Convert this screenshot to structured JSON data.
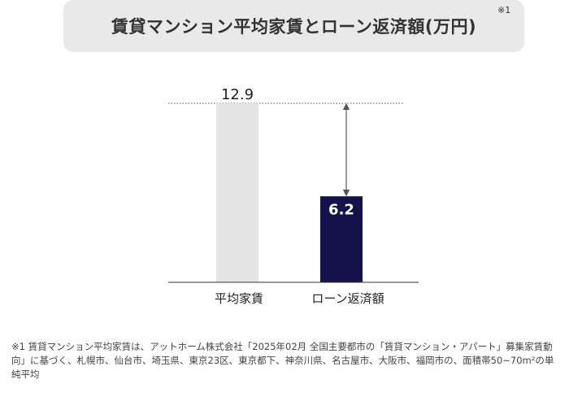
{
  "title": "賃貸マンション平均家賃とローン返済額(万円)",
  "title_note": "※1",
  "chart_data": {
    "type": "bar",
    "categories": [
      "平均家賃",
      "ローン返済額"
    ],
    "values": [
      12.9,
      6.2
    ],
    "data_labels": [
      "12.9",
      "6.2"
    ],
    "ylim": [
      0,
      12.9
    ],
    "grid": false,
    "colors": [
      "#e4e4e4",
      "#15114a"
    ]
  },
  "footnote": "※1 賃貸マンション平均家賃は、アットホーム株式会社「2025年02月 全国主要都市の「賃貸マンション・アパート」募集家賃動向」に基づく、札幌市、仙台市、埼玉県、東京23区、東京都下、神奈川県、名古屋市、大阪市、福岡市の、面積帯50~70m²の単純平均"
}
